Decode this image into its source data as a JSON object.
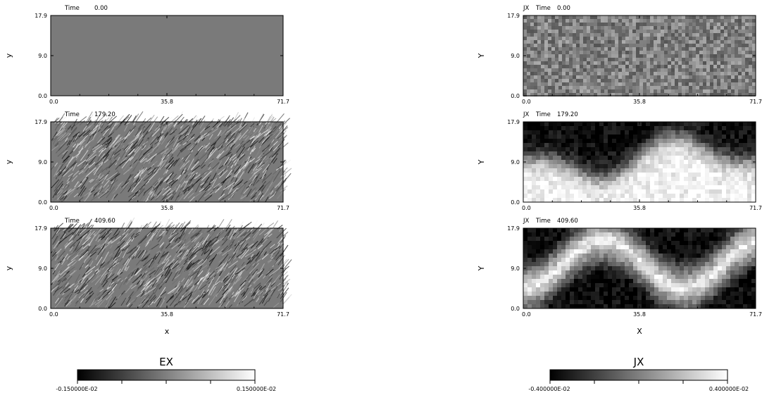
{
  "chart_data": [
    {
      "type": "heatmap",
      "field": "EX",
      "time_label": "Time",
      "time": "0.00",
      "xlabel": "",
      "ylabel": "y",
      "xticks": [
        "0.0",
        "35.8",
        "71.7"
      ],
      "yticks": [
        "0.0",
        "9.0",
        "17.9"
      ],
      "xlim": [
        0.0,
        71.7
      ],
      "ylim": [
        0.0,
        17.9
      ],
      "pattern": "uniform",
      "amplitude": 0.0,
      "colormap": "grayscale"
    },
    {
      "type": "heatmap",
      "field": "EX",
      "time_label": "Time",
      "time": "179.20",
      "xlabel": "",
      "ylabel": "y",
      "xticks": [
        "0.0",
        "35.8",
        "71.7"
      ],
      "yticks": [
        "0.0",
        "9.0",
        "17.9"
      ],
      "xlim": [
        0.0,
        71.7
      ],
      "ylim": [
        0.0,
        17.9
      ],
      "pattern": "fine-streaks",
      "amplitude": 0.6,
      "colormap": "grayscale"
    },
    {
      "type": "heatmap",
      "field": "EX",
      "time_label": "Time",
      "time": "409.60",
      "xlabel": "x",
      "ylabel": "y",
      "xticks": [
        "0.0",
        "35.8",
        "71.7"
      ],
      "yticks": [
        "0.0",
        "9.0",
        "17.9"
      ],
      "xlim": [
        0.0,
        71.7
      ],
      "ylim": [
        0.0,
        17.9
      ],
      "pattern": "fine-streaks",
      "amplitude": 0.6,
      "colormap": "grayscale"
    },
    {
      "type": "heatmap",
      "field": "JX",
      "title_prefix": "JX",
      "time_label": "Time",
      "time": "0.00",
      "xlabel": "",
      "ylabel": "Y",
      "xticks": [
        "0.0",
        "35.8",
        "71.7"
      ],
      "yticks": [
        "0.0",
        "9.0",
        "17.9"
      ],
      "xlim": [
        0.0,
        71.7
      ],
      "ylim": [
        0.0,
        17.9
      ],
      "pattern": "noise",
      "amplitude": 0.35,
      "colormap": "grayscale"
    },
    {
      "type": "heatmap",
      "field": "JX",
      "title_prefix": "JX",
      "time_label": "Time",
      "time": "179.20",
      "xlabel": "",
      "ylabel": "Y",
      "xticks": [
        "0.0",
        "35.8",
        "71.7"
      ],
      "yticks": [
        "0.0",
        "9.0",
        "17.9"
      ],
      "xlim": [
        0.0,
        71.7
      ],
      "ylim": [
        0.0,
        17.9
      ],
      "pattern": "filaments",
      "amplitude": 1.0,
      "colormap": "grayscale"
    },
    {
      "type": "heatmap",
      "field": "JX",
      "title_prefix": "JX",
      "time_label": "Time",
      "time": "409.60",
      "xlabel": "X",
      "ylabel": "Y",
      "xticks": [
        "0.0",
        "35.8",
        "71.7"
      ],
      "yticks": [
        "0.0",
        "9.0",
        "17.9"
      ],
      "xlim": [
        0.0,
        71.7
      ],
      "ylim": [
        0.0,
        17.9
      ],
      "pattern": "filaments",
      "amplitude": 1.0,
      "colormap": "grayscale"
    }
  ],
  "colorbars": [
    {
      "title": "EX",
      "min_label": "-0.150000E-02",
      "max_label": "0.150000E-02",
      "min": -0.0015,
      "max": 0.0015,
      "colormap": "grayscale"
    },
    {
      "title": "JX",
      "min_label": "-0.400000E-02",
      "max_label": "0.400000E-02",
      "min": -0.004,
      "max": 0.004,
      "colormap": "grayscale"
    }
  ]
}
